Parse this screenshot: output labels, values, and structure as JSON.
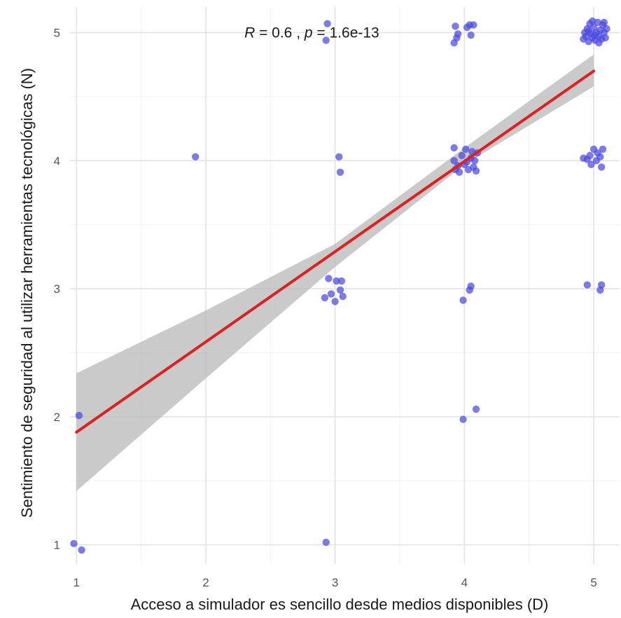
{
  "chart_data": {
    "type": "scatter",
    "xlabel": "Acceso a simulador es sencillo desde medios disponibles (D)",
    "ylabel": "Sentimiento de seguridad al utilizar herramientas tecnológicas (N)",
    "xlim": [
      0.95,
      5.2
    ],
    "ylim": [
      0.85,
      5.2
    ],
    "x_ticks": [
      1,
      2,
      3,
      4,
      5
    ],
    "y_ticks": [
      1,
      2,
      3,
      4,
      5
    ],
    "grid": true,
    "colors": {
      "points": "#4a4ae0",
      "fit_line": "#e02020",
      "band": "#b8b8b8"
    },
    "annotation": {
      "r_symbol": "R",
      "r_text": " = 0.6 , ",
      "p_symbol": "p",
      "p_text": " = 1.6e-13",
      "x": 2.82,
      "y": 5.0
    },
    "fit": {
      "intercept": 1.175,
      "slope": 0.705,
      "x_from": 1.0,
      "x_to": 5.0
    },
    "confidence_band": {
      "x": [
        1.0,
        2.0,
        3.0,
        4.0,
        5.0
      ],
      "lower": [
        1.42,
        2.3,
        3.17,
        3.97,
        4.58
      ],
      "upper": [
        2.34,
        2.83,
        3.35,
        4.1,
        4.83
      ]
    },
    "points": [
      {
        "x": 0.98,
        "y": 1.01
      },
      {
        "x": 1.04,
        "y": 0.96
      },
      {
        "x": 1.02,
        "y": 2.01
      },
      {
        "x": 1.92,
        "y": 4.03
      },
      {
        "x": 2.93,
        "y": 1.02
      },
      {
        "x": 2.92,
        "y": 2.93
      },
      {
        "x": 2.95,
        "y": 3.08
      },
      {
        "x": 2.97,
        "y": 2.96
      },
      {
        "x": 3.0,
        "y": 2.9
      },
      {
        "x": 3.01,
        "y": 3.06
      },
      {
        "x": 3.04,
        "y": 2.99
      },
      {
        "x": 3.05,
        "y": 3.06
      },
      {
        "x": 3.06,
        "y": 2.94
      },
      {
        "x": 3.03,
        "y": 4.03
      },
      {
        "x": 3.04,
        "y": 3.91
      },
      {
        "x": 2.93,
        "y": 4.94
      },
      {
        "x": 2.94,
        "y": 5.07
      },
      {
        "x": 3.99,
        "y": 1.98
      },
      {
        "x": 4.09,
        "y": 2.06
      },
      {
        "x": 3.99,
        "y": 2.91
      },
      {
        "x": 4.04,
        "y": 2.99
      },
      {
        "x": 4.05,
        "y": 3.02
      },
      {
        "x": 3.92,
        "y": 4.1
      },
      {
        "x": 3.92,
        "y": 4.0
      },
      {
        "x": 3.93,
        "y": 3.93
      },
      {
        "x": 3.95,
        "y": 3.96
      },
      {
        "x": 3.96,
        "y": 3.91
      },
      {
        "x": 3.98,
        "y": 4.04
      },
      {
        "x": 4.0,
        "y": 3.97
      },
      {
        "x": 4.01,
        "y": 4.09
      },
      {
        "x": 4.02,
        "y": 3.99
      },
      {
        "x": 4.03,
        "y": 3.93
      },
      {
        "x": 4.05,
        "y": 4.02
      },
      {
        "x": 4.06,
        "y": 4.07
      },
      {
        "x": 4.07,
        "y": 3.95
      },
      {
        "x": 4.08,
        "y": 4.0
      },
      {
        "x": 4.09,
        "y": 3.92
      },
      {
        "x": 4.1,
        "y": 4.06
      },
      {
        "x": 3.92,
        "y": 4.92
      },
      {
        "x": 3.93,
        "y": 5.05
      },
      {
        "x": 3.94,
        "y": 4.96
      },
      {
        "x": 3.95,
        "y": 4.99
      },
      {
        "x": 4.02,
        "y": 5.04
      },
      {
        "x": 4.04,
        "y": 5.06
      },
      {
        "x": 4.05,
        "y": 4.98
      },
      {
        "x": 4.07,
        "y": 5.06
      },
      {
        "x": 4.95,
        "y": 3.03
      },
      {
        "x": 5.05,
        "y": 2.99
      },
      {
        "x": 5.06,
        "y": 3.03
      },
      {
        "x": 4.92,
        "y": 4.02
      },
      {
        "x": 4.95,
        "y": 4.01
      },
      {
        "x": 4.97,
        "y": 4.04
      },
      {
        "x": 4.98,
        "y": 3.97
      },
      {
        "x": 5.0,
        "y": 4.09
      },
      {
        "x": 5.02,
        "y": 4.0
      },
      {
        "x": 5.03,
        "y": 4.06
      },
      {
        "x": 5.05,
        "y": 4.03
      },
      {
        "x": 5.06,
        "y": 3.95
      },
      {
        "x": 5.07,
        "y": 4.09
      },
      {
        "x": 4.92,
        "y": 4.95
      },
      {
        "x": 4.93,
        "y": 5.0
      },
      {
        "x": 4.94,
        "y": 4.97
      },
      {
        "x": 4.95,
        "y": 5.03
      },
      {
        "x": 4.96,
        "y": 4.93
      },
      {
        "x": 4.97,
        "y": 5.07
      },
      {
        "x": 4.98,
        "y": 4.99
      },
      {
        "x": 4.99,
        "y": 4.96
      },
      {
        "x": 5.0,
        "y": 5.04
      },
      {
        "x": 5.01,
        "y": 4.94
      },
      {
        "x": 5.02,
        "y": 5.0
      },
      {
        "x": 5.03,
        "y": 5.08
      },
      {
        "x": 5.04,
        "y": 4.97
      },
      {
        "x": 5.05,
        "y": 5.02
      },
      {
        "x": 5.06,
        "y": 4.95
      },
      {
        "x": 5.07,
        "y": 5.06
      },
      {
        "x": 5.08,
        "y": 5.0
      },
      {
        "x": 5.09,
        "y": 4.96
      },
      {
        "x": 5.1,
        "y": 5.03
      },
      {
        "x": 4.99,
        "y": 5.09
      },
      {
        "x": 5.01,
        "y": 4.98
      },
      {
        "x": 4.96,
        "y": 5.01
      },
      {
        "x": 5.04,
        "y": 4.92
      },
      {
        "x": 5.08,
        "y": 5.08
      }
    ]
  }
}
